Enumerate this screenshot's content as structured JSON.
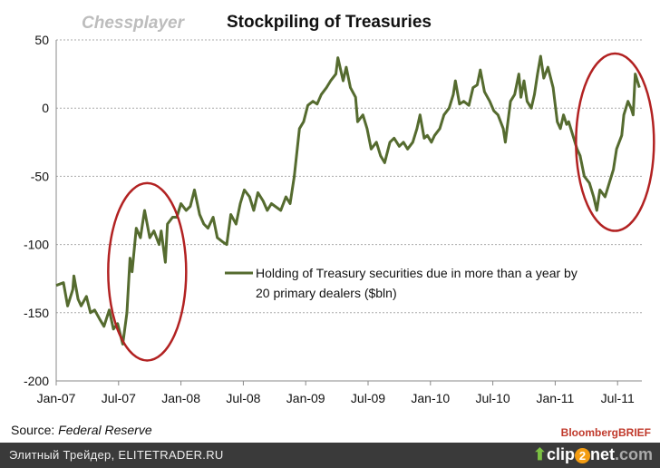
{
  "chart_data": {
    "type": "line",
    "title": "Stockpiling of Treasuries",
    "watermark": "Chessplayer",
    "xlabel": "",
    "ylabel": "",
    "x_unit": "months since Jan-07",
    "xlim": [
      0,
      57
    ],
    "ylim": [
      -200,
      50
    ],
    "yticks": [
      50,
      0,
      -50,
      -100,
      -150,
      -200
    ],
    "xtick_labels": [
      "Jan-07",
      "Jul-07",
      "Jan-08",
      "Jul-08",
      "Jan-09",
      "Jul-09",
      "Jan-10",
      "Jul-10",
      "Jan-11",
      "Jul-11"
    ],
    "grid": "horizontal dashed",
    "legend_position": "center-right",
    "series": [
      {
        "name": "Holding of Treasury securities due in more than a year by 20 primary dealers ($bln)",
        "legend_line1": "Holding of Treasury securities due in more than a year by",
        "legend_line2": "20 primary dealers ($bln)",
        "color": "#556b2f",
        "points": [
          [
            0,
            -130
          ],
          [
            0.7,
            -128
          ],
          [
            1.1,
            -145
          ],
          [
            1.6,
            -133
          ],
          [
            1.7,
            -123
          ],
          [
            2.1,
            -140
          ],
          [
            2.4,
            -145
          ],
          [
            2.9,
            -138
          ],
          [
            3.3,
            -150
          ],
          [
            3.7,
            -148
          ],
          [
            4.2,
            -155
          ],
          [
            4.6,
            -160
          ],
          [
            5.1,
            -148
          ],
          [
            5.5,
            -162
          ],
          [
            5.9,
            -158
          ],
          [
            6.4,
            -173
          ],
          [
            6.8,
            -150
          ],
          [
            7.1,
            -110
          ],
          [
            7.3,
            -120
          ],
          [
            7.7,
            -88
          ],
          [
            8.1,
            -95
          ],
          [
            8.4,
            -80
          ],
          [
            8.5,
            -75
          ],
          [
            9.0,
            -95
          ],
          [
            9.4,
            -90
          ],
          [
            9.9,
            -100
          ],
          [
            10.1,
            -90
          ],
          [
            10.5,
            -113
          ],
          [
            10.7,
            -85
          ],
          [
            11.2,
            -80
          ],
          [
            11.6,
            -80
          ],
          [
            12.0,
            -70
          ],
          [
            12.5,
            -75
          ],
          [
            12.9,
            -72
          ],
          [
            13.3,
            -60
          ],
          [
            13.8,
            -78
          ],
          [
            14.2,
            -85
          ],
          [
            14.6,
            -88
          ],
          [
            15.1,
            -80
          ],
          [
            15.5,
            -95
          ],
          [
            16.0,
            -98
          ],
          [
            16.4,
            -100
          ],
          [
            16.8,
            -78
          ],
          [
            17.3,
            -85
          ],
          [
            17.7,
            -70
          ],
          [
            18.1,
            -60
          ],
          [
            18.6,
            -65
          ],
          [
            19.0,
            -75
          ],
          [
            19.4,
            -62
          ],
          [
            19.9,
            -68
          ],
          [
            20.3,
            -75
          ],
          [
            20.7,
            -70
          ],
          [
            21.6,
            -75
          ],
          [
            22.1,
            -65
          ],
          [
            22.5,
            -70
          ],
          [
            22.9,
            -50
          ],
          [
            23.4,
            -15
          ],
          [
            23.8,
            -10
          ],
          [
            24.2,
            2
          ],
          [
            24.7,
            5
          ],
          [
            25.1,
            3
          ],
          [
            25.5,
            10
          ],
          [
            26.0,
            15
          ],
          [
            26.4,
            20
          ],
          [
            26.9,
            25
          ],
          [
            27.1,
            37
          ],
          [
            27.6,
            20
          ],
          [
            27.9,
            30
          ],
          [
            28.3,
            15
          ],
          [
            28.8,
            8
          ],
          [
            29.0,
            -10
          ],
          [
            29.5,
            -5
          ],
          [
            29.9,
            -15
          ],
          [
            30.3,
            -30
          ],
          [
            30.8,
            -25
          ],
          [
            31.2,
            -35
          ],
          [
            31.6,
            -40
          ],
          [
            32.1,
            -25
          ],
          [
            32.5,
            -22
          ],
          [
            33.0,
            -28
          ],
          [
            33.4,
            -25
          ],
          [
            33.8,
            -30
          ],
          [
            34.3,
            -25
          ],
          [
            34.7,
            -15
          ],
          [
            35.0,
            -5
          ],
          [
            35.4,
            -22
          ],
          [
            35.7,
            -20
          ],
          [
            36.1,
            -25
          ],
          [
            36.4,
            -20
          ],
          [
            36.9,
            -15
          ],
          [
            37.3,
            -5
          ],
          [
            37.8,
            0
          ],
          [
            38.2,
            10
          ],
          [
            38.4,
            20
          ],
          [
            38.8,
            3
          ],
          [
            39.2,
            5
          ],
          [
            39.7,
            2
          ],
          [
            40.1,
            15
          ],
          [
            40.5,
            17
          ],
          [
            40.8,
            28
          ],
          [
            41.2,
            12
          ],
          [
            41.7,
            5
          ],
          [
            42.1,
            -2
          ],
          [
            42.5,
            -5
          ],
          [
            43.0,
            -15
          ],
          [
            43.2,
            -25
          ],
          [
            43.7,
            5
          ],
          [
            44.1,
            10
          ],
          [
            44.5,
            25
          ],
          [
            44.7,
            8
          ],
          [
            45.0,
            20
          ],
          [
            45.3,
            5
          ],
          [
            45.7,
            0
          ],
          [
            46.0,
            10
          ],
          [
            46.3,
            25
          ],
          [
            46.6,
            38
          ],
          [
            46.9,
            22
          ],
          [
            47.3,
            30
          ],
          [
            47.8,
            15
          ],
          [
            48.2,
            -10
          ],
          [
            48.5,
            -15
          ],
          [
            48.8,
            -5
          ],
          [
            49.1,
            -12
          ],
          [
            49.3,
            -10
          ],
          [
            49.7,
            -20
          ],
          [
            50.1,
            -30
          ],
          [
            50.4,
            -35
          ],
          [
            50.8,
            -50
          ],
          [
            51.3,
            -55
          ],
          [
            51.7,
            -65
          ],
          [
            52.0,
            -75
          ],
          [
            52.3,
            -60
          ],
          [
            52.8,
            -65
          ],
          [
            53.2,
            -55
          ],
          [
            53.6,
            -45
          ],
          [
            53.9,
            -30
          ],
          [
            54.4,
            -20
          ],
          [
            54.6,
            -5
          ],
          [
            55.0,
            5
          ],
          [
            55.3,
            0
          ],
          [
            55.5,
            -5
          ],
          [
            55.7,
            25
          ],
          [
            56.1,
            15
          ]
        ]
      }
    ],
    "annotations": [
      {
        "type": "ellipse",
        "color": "#b22222",
        "x_range": [
          5.0,
          12.5
        ],
        "y_range": [
          -185,
          -55
        ]
      },
      {
        "type": "ellipse",
        "color": "#b22222",
        "x_range": [
          50.0,
          57.5
        ],
        "y_range": [
          -90,
          40
        ]
      }
    ]
  },
  "source": {
    "label": "Source:",
    "value": "Federal Reserve"
  },
  "brand": "BloombergBRIEF",
  "footer": {
    "text": "Элитный Трейдер, ELITETRADER.RU",
    "logo_pre": "clip",
    "logo_two": "2",
    "logo_post": "net",
    "logo_dot": ".com"
  }
}
